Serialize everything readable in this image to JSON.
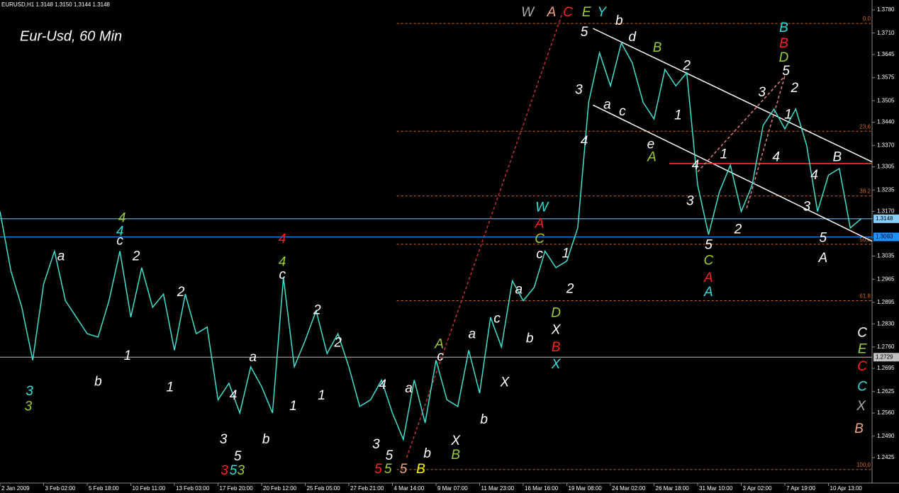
{
  "chart_data": {
    "type": "line",
    "header": "EURUSD,H1  1.3148 1.3150 1.3144 1.3148",
    "title": "Eur-Usd, 60 Min",
    "categories": [
      "2 Jan 2009",
      null,
      null,
      null,
      "3 Feb 02:00",
      null,
      null,
      null,
      "5 Feb 18:00",
      null,
      null,
      null,
      "10 Feb 11:00",
      null,
      null,
      null,
      "13 Feb 03:00",
      null,
      null,
      null,
      "17 Feb 20:00",
      null,
      null,
      null,
      "20 Feb 12:00",
      null,
      null,
      null,
      "25 Feb 05:00",
      null,
      null,
      null,
      "27 Feb 21:00",
      null,
      null,
      null,
      "4 Mar 14:00",
      null,
      null,
      null,
      "9 Mar 07:00",
      null,
      null,
      null,
      "11 Mar 23:00",
      null,
      null,
      null,
      "16 Mar 16:00",
      null,
      null,
      null,
      "19 Mar 08:00",
      null,
      null,
      null,
      "24 Mar 02:00",
      null,
      null,
      null,
      "26 Mar 18:00",
      null,
      null,
      null,
      "31 Mar 10:00",
      null,
      null,
      null,
      "3 Apr 02:00",
      null,
      null,
      null,
      "7 Apr 19:00",
      null,
      null,
      null,
      "10 Apr 13:00",
      null,
      null,
      null
    ],
    "series": [
      {
        "name": "EURUSD,H1",
        "color": "#40e0d0",
        "values": [
          1.317,
          1.299,
          1.288,
          1.272,
          1.295,
          1.305,
          1.29,
          1.285,
          1.28,
          1.279,
          1.29,
          1.305,
          1.285,
          1.3,
          1.288,
          1.292,
          1.275,
          1.292,
          1.28,
          1.282,
          1.26,
          1.265,
          1.256,
          1.27,
          1.264,
          1.256,
          1.297,
          1.27,
          1.278,
          1.287,
          1.274,
          1.28,
          1.27,
          1.258,
          1.26,
          1.266,
          1.256,
          1.248,
          1.266,
          1.253,
          1.272,
          1.26,
          1.258,
          1.275,
          1.262,
          1.285,
          1.276,
          1.296,
          1.29,
          1.294,
          1.305,
          1.3,
          1.302,
          1.312,
          1.35,
          1.365,
          1.355,
          1.368,
          1.362,
          1.35,
          1.345,
          1.36,
          1.355,
          1.359,
          1.325,
          1.31,
          1.323,
          1.331,
          1.317,
          1.325,
          1.343,
          1.348,
          1.342,
          1.348,
          1.337,
          1.317,
          1.328,
          1.33,
          1.312,
          1.3148
        ]
      }
    ],
    "ylim": [
      1.2348,
      1.381
    ],
    "yticks": [
      {
        "value": 1.378,
        "label": "1.3780"
      },
      {
        "value": 1.371,
        "label": "1.3710"
      },
      {
        "value": 1.3645,
        "label": "1.3645"
      },
      {
        "value": 1.3575,
        "label": "1.3575"
      },
      {
        "value": 1.3505,
        "label": "1.3505"
      },
      {
        "value": 1.344,
        "label": "1.3440"
      },
      {
        "value": 1.337,
        "label": "1.3370"
      },
      {
        "value": 1.3305,
        "label": "1.3305"
      },
      {
        "value": 1.3235,
        "label": "1.3235"
      },
      {
        "value": 1.317,
        "label": "1.3170"
      },
      {
        "value": 1.3035,
        "label": "1.3035"
      },
      {
        "value": 1.2965,
        "label": "1.2965"
      },
      {
        "value": 1.2895,
        "label": "1.2895"
      },
      {
        "value": 1.283,
        "label": "1.2830"
      },
      {
        "value": 1.276,
        "label": "1.2760"
      },
      {
        "value": 1.2695,
        "label": "1.2695"
      },
      {
        "value": 1.2625,
        "label": "1.2625"
      },
      {
        "value": 1.256,
        "label": "1.2560"
      },
      {
        "value": 1.249,
        "label": "1.2490"
      },
      {
        "value": 1.2425,
        "label": "1.2425"
      }
    ],
    "fib_levels": [
      {
        "value": 1.3739,
        "label": "0.0"
      },
      {
        "value": 1.3413,
        "label": "23.6"
      },
      {
        "value": 1.3217,
        "label": "38.2"
      },
      {
        "value": 1.3071,
        "label": "50.0"
      },
      {
        "value": 1.29,
        "label": "61.8"
      },
      {
        "value": 1.2389,
        "label": "100.0"
      }
    ],
    "fib_start": 36.4,
    "price_lines": [
      {
        "value": 1.3148,
        "label": "1.3148",
        "color": "#87cefa"
      },
      {
        "value": 1.3093,
        "label": "1.3093",
        "color": "#1e90ff"
      },
      {
        "value": 1.2729,
        "label": "1.2729",
        "color": "#c0c0c0"
      }
    ],
    "trendlines": [
      {
        "from": [
          54.4,
          1.3724
        ],
        "to": [
          80,
          1.332
        ],
        "color": "#ffffff",
        "dash": false
      },
      {
        "from": [
          54.4,
          1.3492
        ],
        "to": [
          80,
          1.308
        ],
        "color": "#ffffff",
        "dash": false
      },
      {
        "from": [
          61.4,
          1.3315
        ],
        "to": [
          80,
          1.3315
        ],
        "color": "#ff4020",
        "dash": false
      },
      {
        "from": [
          37.3,
          1.2425
        ],
        "to": [
          51.6,
          1.3771
        ],
        "color": "#c03030",
        "dash": true
      },
      {
        "from": [
          64.0,
          1.329
        ],
        "to": [
          72.0,
          1.358
        ],
        "color": "#e08080",
        "dash": true
      },
      {
        "from": [
          68.5,
          1.318
        ],
        "to": [
          72.0,
          1.358
        ],
        "color": "#e08080",
        "dash": true
      }
    ],
    "annotations": [
      {
        "text": "W",
        "color": "#a9a9a9",
        "x": 48.4,
        "y": 1.3771
      },
      {
        "text": "A",
        "color": "#f4a582",
        "x": 50.6,
        "y": 1.3771
      },
      {
        "text": "C",
        "color": "#ff2020",
        "x": 52.1,
        "y": 1.3771
      },
      {
        "text": "E",
        "color": "#9acd32",
        "x": 53.8,
        "y": 1.3771
      },
      {
        "text": "Y",
        "color": "#33dddd",
        "x": 55.2,
        "y": 1.3771
      },
      {
        "text": "5",
        "color": "#ffffff",
        "x": 53.6,
        "y": 1.3711
      },
      {
        "text": "b",
        "color": "#ffffff",
        "x": 56.8,
        "y": 1.3746
      },
      {
        "text": "d",
        "color": "#ffffff",
        "x": 58.0,
        "y": 1.3696
      },
      {
        "text": "B",
        "color": "#9acd32",
        "x": 60.3,
        "y": 1.3664
      },
      {
        "text": "2",
        "color": "#ffffff",
        "x": 63.0,
        "y": 1.361
      },
      {
        "text": "3",
        "color": "#ffffff",
        "x": 53.1,
        "y": 1.3537
      },
      {
        "text": "a",
        "color": "#ffffff",
        "x": 55.7,
        "y": 1.3492
      },
      {
        "text": "c",
        "color": "#ffffff",
        "x": 57.1,
        "y": 1.3471
      },
      {
        "text": "1",
        "color": "#ffffff",
        "x": 62.2,
        "y": 1.346
      },
      {
        "text": "4",
        "color": "#ffffff",
        "x": 53.6,
        "y": 1.3381
      },
      {
        "text": "e",
        "color": "#ffffff",
        "x": 59.7,
        "y": 1.3372
      },
      {
        "text": "A",
        "color": "#9acd32",
        "x": 59.8,
        "y": 1.3333
      },
      {
        "text": "1",
        "color": "#ffffff",
        "x": 66.4,
        "y": 1.3342
      },
      {
        "text": "4",
        "color": "#ffffff",
        "x": 63.8,
        "y": 1.3308
      },
      {
        "text": "3",
        "color": "#ffffff",
        "x": 63.3,
        "y": 1.32
      },
      {
        "text": "2",
        "color": "#ffffff",
        "x": 67.7,
        "y": 1.3114
      },
      {
        "text": "5",
        "color": "#ffffff",
        "x": 65.0,
        "y": 1.3067
      },
      {
        "text": "C",
        "color": "#9acd32",
        "x": 65.0,
        "y": 1.302
      },
      {
        "text": "A",
        "color": "#ff2020",
        "x": 65.0,
        "y": 1.2968
      },
      {
        "text": "A",
        "color": "#33dddd",
        "x": 65.0,
        "y": 1.2925
      },
      {
        "text": "B",
        "color": "#33dddd",
        "x": 71.9,
        "y": 1.3724
      },
      {
        "text": "B",
        "color": "#ff2020",
        "x": 71.9,
        "y": 1.3677
      },
      {
        "text": "D",
        "color": "#9acd32",
        "x": 71.9,
        "y": 1.3634
      },
      {
        "text": "5",
        "color": "#ffffff",
        "x": 72.1,
        "y": 1.3593
      },
      {
        "text": "3",
        "color": "#ffffff",
        "x": 69.9,
        "y": 1.3529
      },
      {
        "text": "2",
        "color": "#ffffff",
        "x": 72.9,
        "y": 1.3542
      },
      {
        "text": "1",
        "color": "#ffffff",
        "x": 72.3,
        "y": 1.3462
      },
      {
        "text": "4",
        "color": "#ffffff",
        "x": 71.2,
        "y": 1.3333
      },
      {
        "text": "B",
        "color": "#ffffff",
        "x": 76.8,
        "y": 1.3333
      },
      {
        "text": "4",
        "color": "#ffffff",
        "x": 74.7,
        "y": 1.3278
      },
      {
        "text": "3",
        "color": "#ffffff",
        "x": 74.0,
        "y": 1.3183
      },
      {
        "text": "5",
        "color": "#ffffff",
        "x": 75.5,
        "y": 1.3089
      },
      {
        "text": "A",
        "color": "#ffffff",
        "x": 75.5,
        "y": 1.3028
      },
      {
        "text": "C",
        "color": "#ffffff",
        "x": 79.1,
        "y": 1.2801
      },
      {
        "text": "E",
        "color": "#9acd32",
        "x": 79.1,
        "y": 1.2752
      },
      {
        "text": "C",
        "color": "#ff2020",
        "x": 79.1,
        "y": 1.27
      },
      {
        "text": "C",
        "color": "#33dddd",
        "x": 79.1,
        "y": 1.2638
      },
      {
        "text": "X",
        "color": "#a9a9a9",
        "x": 79.0,
        "y": 1.258
      },
      {
        "text": "B",
        "color": "#f4a582",
        "x": 78.8,
        "y": 1.2511
      },
      {
        "text": "W",
        "color": "#33dddd",
        "x": 49.7,
        "y": 1.3181
      },
      {
        "text": "A",
        "color": "#ff2020",
        "x": 49.5,
        "y": 1.3132
      },
      {
        "text": "C",
        "color": "#9acd32",
        "x": 49.5,
        "y": 1.3086
      },
      {
        "text": "c",
        "color": "#ffffff",
        "x": 49.5,
        "y": 1.3039
      },
      {
        "text": "1",
        "color": "#ffffff",
        "x": 51.9,
        "y": 1.3041
      },
      {
        "text": "2",
        "color": "#ffffff",
        "x": 52.3,
        "y": 1.2934
      },
      {
        "text": "a",
        "color": "#ffffff",
        "x": 47.6,
        "y": 1.2932
      },
      {
        "text": "D",
        "color": "#9acd32",
        "x": 51.0,
        "y": 1.2861
      },
      {
        "text": "X",
        "color": "#ffffff",
        "x": 51.0,
        "y": 1.281
      },
      {
        "text": "B",
        "color": "#ff2020",
        "x": 51.0,
        "y": 1.2758
      },
      {
        "text": "X",
        "color": "#33dddd",
        "x": 51.0,
        "y": 1.2706
      },
      {
        "text": "b",
        "color": "#ffffff",
        "x": 48.6,
        "y": 1.2784
      },
      {
        "text": "c",
        "color": "#ffffff",
        "x": 45.6,
        "y": 1.2844
      },
      {
        "text": "a",
        "color": "#ffffff",
        "x": 43.3,
        "y": 1.2797
      },
      {
        "text": "X",
        "color": "#ffffff",
        "x": 46.3,
        "y": 1.2651
      },
      {
        "text": "A",
        "color": "#9acd32",
        "x": 40.3,
        "y": 1.2767
      },
      {
        "text": "c",
        "color": "#ffffff",
        "x": 40.4,
        "y": 1.273
      },
      {
        "text": "X",
        "color": "#ffffff",
        "x": 41.8,
        "y": 1.2475
      },
      {
        "text": "B",
        "color": "#9acd32",
        "x": 41.8,
        "y": 1.2432
      },
      {
        "text": "b",
        "color": "#ffffff",
        "x": 44.4,
        "y": 1.2539
      },
      {
        "text": "4",
        "color": "#ffffff",
        "x": 35.1,
        "y": 1.2644
      },
      {
        "text": "a",
        "color": "#ffffff",
        "x": 37.5,
        "y": 1.2633
      },
      {
        "text": "3",
        "color": "#ffffff",
        "x": 34.5,
        "y": 1.2464
      },
      {
        "text": "5",
        "color": "#ffffff",
        "x": 35.7,
        "y": 1.243
      },
      {
        "text": "b",
        "color": "#ffffff",
        "x": 39.2,
        "y": 1.2436
      },
      {
        "text": "5",
        "color": "#ff2020",
        "x": 34.7,
        "y": 1.2389
      },
      {
        "text": "5",
        "color": "#9acd32",
        "x": 35.6,
        "y": 1.2389
      },
      {
        "text": "5",
        "color": "#f4a582",
        "x": 37.0,
        "y": 1.2389
      },
      {
        "text": "B",
        "color": "#ffff00",
        "x": 38.6,
        "y": 1.2389
      },
      {
        "text": "4",
        "color": "#9acd32",
        "x": 11.2,
        "y": 1.3149
      },
      {
        "text": "4",
        "color": "#33dddd",
        "x": 11.0,
        "y": 1.3108
      },
      {
        "text": "c",
        "color": "#ffffff",
        "x": 11.0,
        "y": 1.308
      },
      {
        "text": "4",
        "color": "#ff2020",
        "x": 25.9,
        "y": 1.3086
      },
      {
        "text": "4",
        "color": "#9acd32",
        "x": 25.9,
        "y": 1.3016
      },
      {
        "text": "c",
        "color": "#ffffff",
        "x": 25.9,
        "y": 1.2977
      },
      {
        "text": "a",
        "color": "#ffffff",
        "x": 5.6,
        "y": 1.3033
      },
      {
        "text": "2",
        "color": "#ffffff",
        "x": 12.5,
        "y": 1.3033
      },
      {
        "text": "2",
        "color": "#ffffff",
        "x": 16.6,
        "y": 1.2925
      },
      {
        "text": "1",
        "color": "#ffffff",
        "x": 11.7,
        "y": 1.2732
      },
      {
        "text": "b",
        "color": "#ffffff",
        "x": 9.0,
        "y": 1.2653
      },
      {
        "text": "1",
        "color": "#ffffff",
        "x": 15.6,
        "y": 1.2636
      },
      {
        "text": "3",
        "color": "#33dddd",
        "x": 2.7,
        "y": 1.2625
      },
      {
        "text": "3",
        "color": "#9acd32",
        "x": 2.6,
        "y": 1.2578
      },
      {
        "text": "2",
        "color": "#ffffff",
        "x": 29.1,
        "y": 1.287
      },
      {
        "text": "2",
        "color": "#ffffff",
        "x": 31.0,
        "y": 1.2771
      },
      {
        "text": "a",
        "color": "#ffffff",
        "x": 23.2,
        "y": 1.2728
      },
      {
        "text": "1",
        "color": "#ffffff",
        "x": 26.9,
        "y": 1.258
      },
      {
        "text": "1",
        "color": "#ffffff",
        "x": 29.5,
        "y": 1.2612
      },
      {
        "text": "4",
        "color": "#ffffff",
        "x": 21.4,
        "y": 1.2612
      },
      {
        "text": "3",
        "color": "#ffffff",
        "x": 20.5,
        "y": 1.2479
      },
      {
        "text": "5",
        "color": "#ffffff",
        "x": 21.8,
        "y": 1.2427
      },
      {
        "text": "b",
        "color": "#ffffff",
        "x": 24.4,
        "y": 1.2479
      },
      {
        "text": "3",
        "color": "#ff2020",
        "x": 20.6,
        "y": 1.2384
      },
      {
        "text": "5",
        "color": "#33dddd",
        "x": 21.4,
        "y": 1.2384
      },
      {
        "text": "3",
        "color": "#9acd32",
        "x": 22.1,
        "y": 1.2384
      }
    ]
  }
}
